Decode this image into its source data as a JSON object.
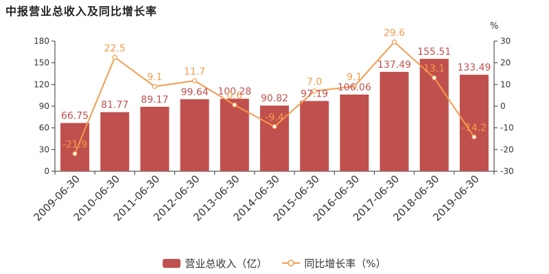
{
  "title": "中报营业总收入及同比增长率",
  "right_axis_unit": "%",
  "colors": {
    "bar": "#c0504d",
    "line": "#f39b4b",
    "bar_label": "#c0504d",
    "line_label": "#f39b4b",
    "axis": "#333333"
  },
  "chart_data": {
    "type": "bar",
    "categories": [
      "2009-06-30",
      "2010-06-30",
      "2011-06-30",
      "2012-06-30",
      "2013-06-30",
      "2014-06-30",
      "2015-06-30",
      "2016-06-30",
      "2017-06-30",
      "2018-06-30",
      "2019-06-30"
    ],
    "series": [
      {
        "name": "营业总收入（亿）",
        "type": "bar",
        "axis": "left",
        "values": [
          66.75,
          81.77,
          89.17,
          99.64,
          100.28,
          90.82,
          97.19,
          106.06,
          137.49,
          155.51,
          133.49
        ],
        "labels": [
          "66.75",
          "81.77",
          "89.17",
          "99.64",
          "100.28",
          "90.82",
          "97.19",
          "106.06",
          "137.49",
          "155.51",
          "133.49"
        ]
      },
      {
        "name": "同比增长率（%）",
        "type": "line",
        "axis": "right",
        "values": [
          -21.9,
          22.5,
          9.1,
          11.7,
          0.6,
          -9.4,
          7.0,
          9.1,
          29.6,
          13.1,
          -14.2
        ],
        "labels": [
          "-21.9",
          "22.5",
          "9.1",
          "11.7",
          "0.6",
          "-9.4",
          "7.0",
          "9.1",
          "29.6",
          "13.1",
          "-14.2"
        ]
      }
    ],
    "y_left": {
      "ylim": [
        0,
        180
      ],
      "ticks": [
        "0",
        "30",
        "60",
        "90",
        "120",
        "150",
        "180"
      ]
    },
    "y_right": {
      "ylim": [
        -30,
        30
      ],
      "ticks": [
        "-30",
        "-20",
        "-10",
        "0",
        "10",
        "20",
        "30"
      ]
    },
    "grid": false,
    "legend_position": "bottom"
  }
}
